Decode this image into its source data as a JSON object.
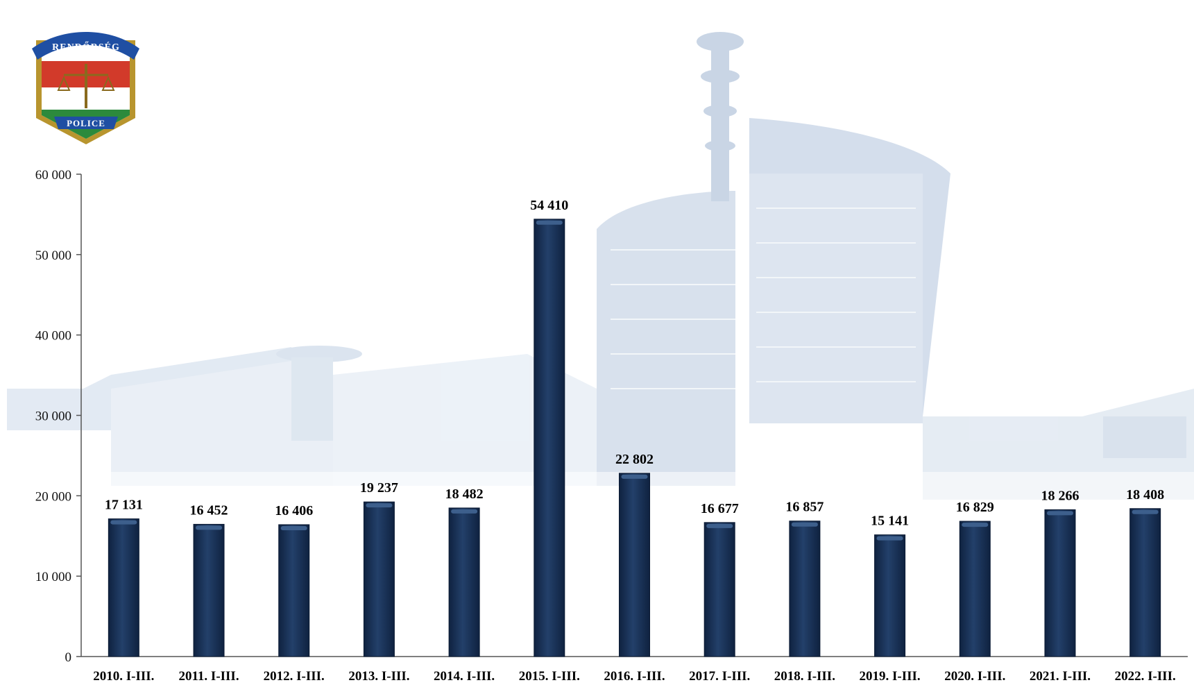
{
  "logo": {
    "top_text": "RENDŐRSÉG",
    "bottom_text": "POLICE"
  },
  "colors": {
    "bar": "#1b3558",
    "bar_highlight": "#3d5f8c",
    "axis": "#555555",
    "background_building": "#c9d6e6"
  },
  "chart_data": {
    "type": "bar",
    "categories": [
      "2010. I-III.",
      "2011. I-III.",
      "2012. I-III.",
      "2013. I-III.",
      "2014. I-III.",
      "2015. I-III.",
      "2016. I-III.",
      "2017. I-III.",
      "2018. I-III.",
      "2019. I-III.",
      "2020. I-III.",
      "2021. I-III.",
      "2022. I-III."
    ],
    "values": [
      17131,
      16452,
      16406,
      19237,
      18482,
      54410,
      22802,
      16677,
      16857,
      15141,
      16829,
      18266,
      18408
    ],
    "data_labels": [
      "17 131",
      "16 452",
      "16 406",
      "19 237",
      "18 482",
      "54 410",
      "22 802",
      "16 677",
      "16 857",
      "15 141",
      "16 829",
      "18 266",
      "18 408"
    ],
    "ylim": [
      0,
      60000
    ],
    "yticks": [
      0,
      10000,
      20000,
      30000,
      40000,
      50000,
      60000
    ],
    "ytick_labels": [
      "0",
      "10 000",
      "20 000",
      "30 000",
      "40 000",
      "50 000",
      "60 000"
    ],
    "grid": false,
    "legend": "none",
    "title": "",
    "xlabel": "",
    "ylabel": ""
  }
}
